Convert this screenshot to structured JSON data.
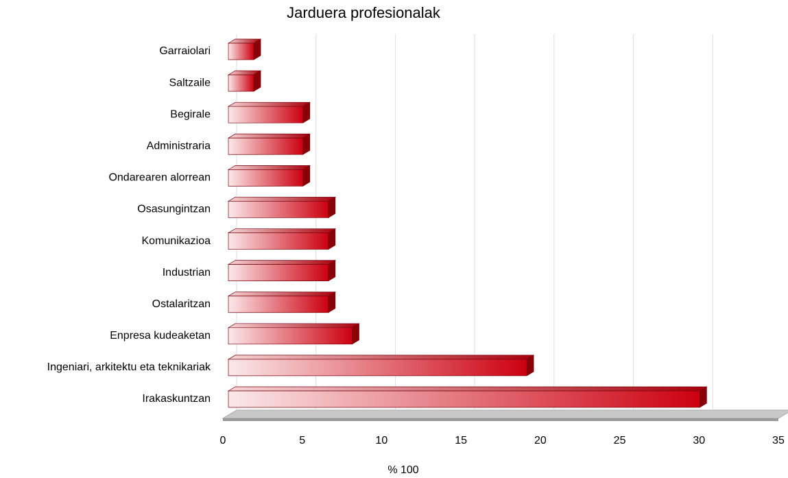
{
  "chart_data": {
    "type": "bar",
    "orientation": "horizontal",
    "title": "Jarduera profesionalak",
    "x_label": "% 100",
    "categories": [
      "Garraiolari",
      "Saltzaile",
      "Begirale",
      "Administraria",
      "Ondarearen alorrean",
      "Osasungintzan",
      "Komunikazioa",
      "Industrian",
      "Ostalaritzan",
      "Enpresa kudeaketan",
      "Ingeniari, arkitektu eta teknikariak",
      "Irakaskuntzan"
    ],
    "values": [
      1.6,
      1.6,
      4.7,
      4.7,
      4.7,
      6.3,
      6.3,
      6.3,
      6.3,
      7.8,
      18.8,
      29.7
    ],
    "color": "#cc0010",
    "xlim": [
      0,
      35
    ],
    "xticks": [
      0,
      5,
      10,
      15,
      20,
      25,
      30,
      35
    ],
    "grid": true
  }
}
